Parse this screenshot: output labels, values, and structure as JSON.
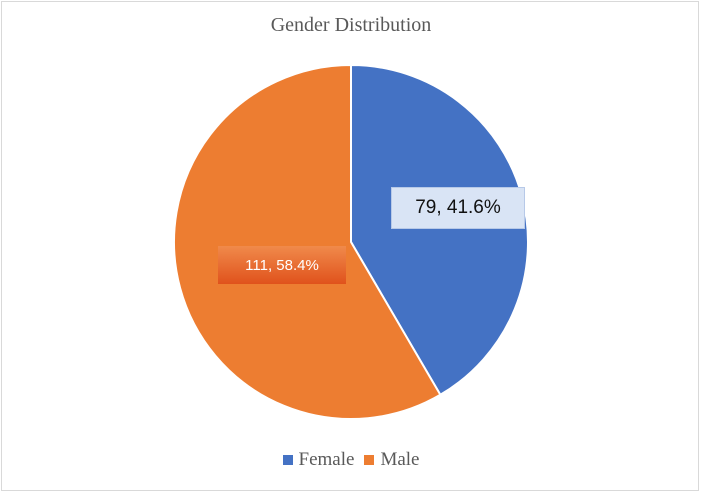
{
  "chart_data": {
    "type": "pie",
    "title": "Gender Distribution",
    "slices": [
      {
        "label": "Female",
        "value": 79,
        "percent": 41.6,
        "color": "#4472c4",
        "data_label": "79, 41.6%"
      },
      {
        "label": "Male",
        "value": 111,
        "percent": 58.4,
        "color": "#ed7d31",
        "data_label": "111, 58.4%"
      }
    ],
    "legend": {
      "placement": "bottom",
      "items": [
        "Female",
        "Male"
      ]
    }
  }
}
